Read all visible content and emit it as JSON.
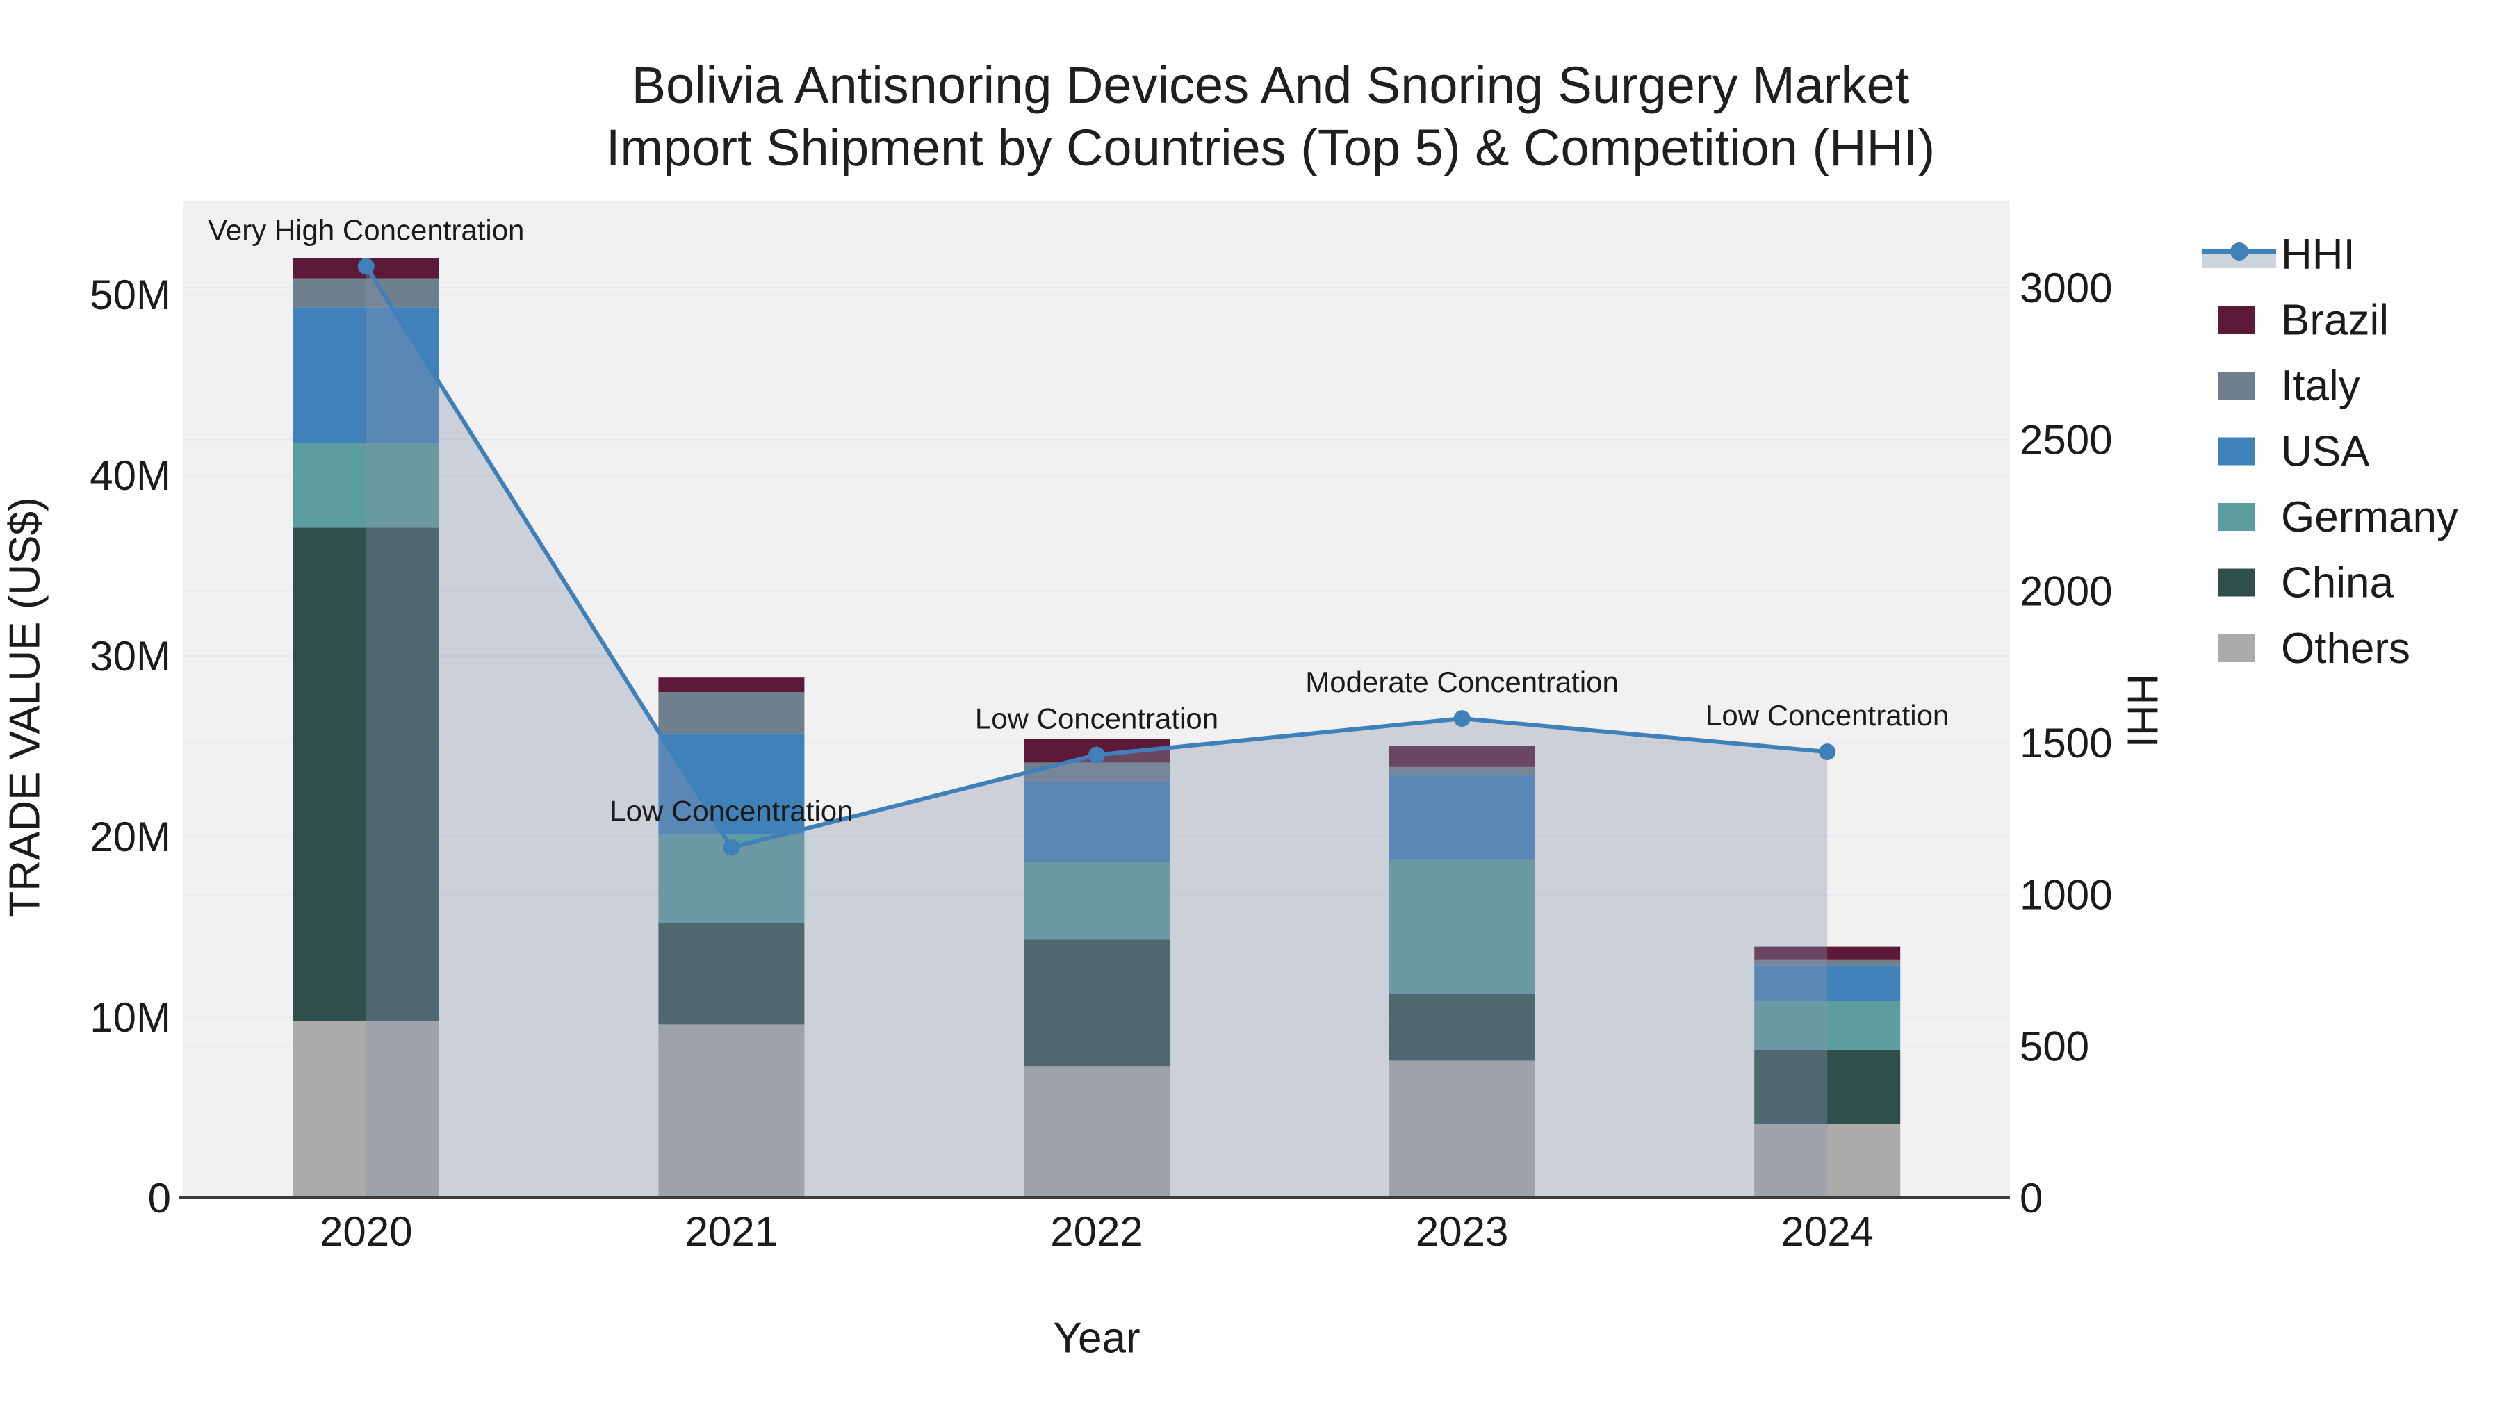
{
  "chart_data": {
    "type": "bar",
    "subtype": "stacked-bar-with-line-combo",
    "title_line1": "Bolivia Antisnoring Devices And Snoring Surgery Market",
    "title_line2": "Import Shipment by Countries (Top 5) & Competition (HHI)",
    "xlabel": "Year",
    "ylabel_left": "TRADE VALUE (US$)",
    "ylabel_right": "HHI",
    "categories": [
      "2020",
      "2021",
      "2022",
      "2023",
      "2024"
    ],
    "bar_value_unit": "millions US$",
    "bar_series": [
      {
        "name": "Others",
        "color": "#ABABA9",
        "values": [
          9.8,
          9.6,
          7.3,
          7.6,
          4.1
        ]
      },
      {
        "name": "China",
        "color": "#2F4F4B",
        "values": [
          27.3,
          5.6,
          7.0,
          3.7,
          4.1
        ]
      },
      {
        "name": "Germany",
        "color": "#5C9DA0",
        "values": [
          4.7,
          4.9,
          4.3,
          7.4,
          2.7
        ]
      },
      {
        "name": "USA",
        "color": "#4081BA",
        "values": [
          7.5,
          5.6,
          4.4,
          4.7,
          1.95
        ]
      },
      {
        "name": "Italy",
        "color": "#6E7F8D",
        "values": [
          1.6,
          2.3,
          1.1,
          0.45,
          0.35
        ]
      },
      {
        "name": "Brazil",
        "color": "#5C1A38",
        "values": [
          1.1,
          0.8,
          1.3,
          1.15,
          0.7
        ]
      }
    ],
    "line_series": {
      "name": "HHI",
      "color": "#4080B8",
      "area_fill_color": "rgba(135,150,175,0.36)",
      "legend_band_color": "#CDD3DA",
      "values": [
        3070,
        1155,
        1460,
        1580,
        1470
      ]
    },
    "annotations": [
      {
        "category": "2020",
        "text": "Very High Concentration"
      },
      {
        "category": "2021",
        "text": "Low Concentration"
      },
      {
        "category": "2022",
        "text": "Low Concentration"
      },
      {
        "category": "2023",
        "text": "Moderate Concentration"
      },
      {
        "category": "2024",
        "text": "Low Concentration"
      }
    ],
    "y_left": {
      "tick_labels": [
        "0",
        "10M",
        "20M",
        "30M",
        "40M",
        "50M"
      ],
      "tick_values": [
        0,
        10,
        20,
        30,
        40,
        50
      ],
      "range": [
        0,
        55.2
      ]
    },
    "y_right": {
      "tick_labels": [
        "0",
        "500",
        "1000",
        "1500",
        "2000",
        "2500",
        "3000"
      ],
      "tick_values": [
        0,
        500,
        1000,
        1500,
        2000,
        2500,
        3000
      ],
      "range": [
        0,
        3284
      ]
    },
    "legend_position": "right",
    "grid": true,
    "plot_bg_color": "#F1F1F1",
    "grid_color": "#E8E8EA",
    "axis_line_color": "#3C3C3C",
    "text_color": "#1b1b1b"
  }
}
